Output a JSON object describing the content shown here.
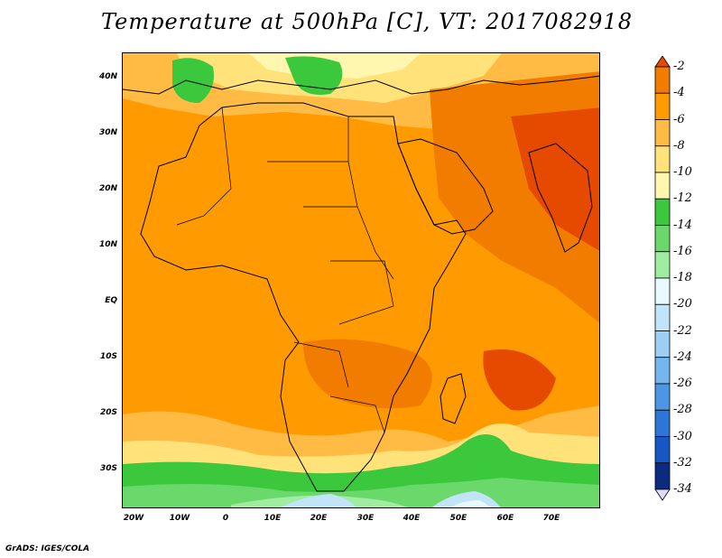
{
  "title": "Temperature at 500hPa [C], VT: 2017082918",
  "credit": "GrADS: IGES/COLA",
  "lat_labels": [
    "40N",
    "30N",
    "20N",
    "10N",
    "EQ",
    "10S",
    "20S",
    "30S"
  ],
  "lon_labels": [
    "20W",
    "10W",
    "0",
    "10E",
    "20E",
    "30E",
    "40E",
    "50E",
    "60E",
    "70E"
  ],
  "colorbar": {
    "labels": [
      "-2",
      "-4",
      "-6",
      "-8",
      "-10",
      "-12",
      "-14",
      "-16",
      "-18",
      "-20",
      "-22",
      "-24",
      "-26",
      "-28",
      "-30",
      "-32",
      "-34"
    ],
    "colors": [
      "#e64a00",
      "#f27c00",
      "#ff9a00",
      "#ffbb44",
      "#ffe27a",
      "#fff6b0",
      "#3cc83c",
      "#6ad86a",
      "#a0eca0",
      "#e8faff",
      "#c2e4f8",
      "#9ccff4",
      "#74b6ee",
      "#4d96e6",
      "#2c76d8",
      "#1558c4",
      "#0c2a80",
      "#e0dcf8"
    ]
  }
}
